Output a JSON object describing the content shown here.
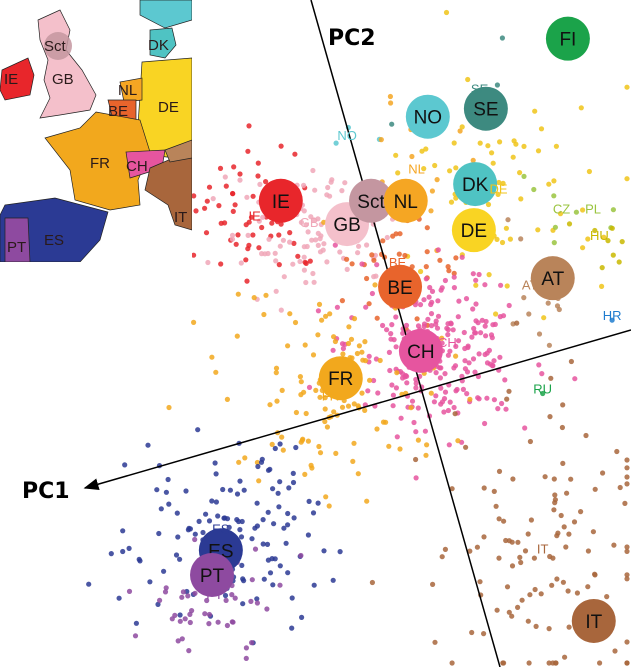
{
  "chart_data": {
    "type": "scatter",
    "title": "",
    "axes": [
      {
        "label": "PC1"
      },
      {
        "label": "PC2"
      }
    ],
    "xlim": [
      0,
      10
    ],
    "ylim": [
      0,
      10
    ],
    "grid": false,
    "legend": "map-inset top-left",
    "centroids": [
      {
        "label": "FI",
        "x": 9.0,
        "y": 0.58,
        "color": "#1ba34a"
      },
      {
        "label": "NO",
        "x": 6.78,
        "y": 1.75,
        "color": "#5cc8d0"
      },
      {
        "label": "SE",
        "x": 7.7,
        "y": 1.63,
        "color": "#3d8a80"
      },
      {
        "label": "DK",
        "x": 7.53,
        "y": 2.76,
        "color": "#4fc3c3"
      },
      {
        "label": "IE",
        "x": 4.45,
        "y": 3.01,
        "color": "#e8262b"
      },
      {
        "label": "GB",
        "x": 5.5,
        "y": 3.36,
        "color": "#f4c0cb"
      },
      {
        "label": "Sct",
        "x": 5.88,
        "y": 3.01,
        "color": "#c496a0"
      },
      {
        "label": "NL",
        "x": 6.43,
        "y": 3.01,
        "color": "#f5a623"
      },
      {
        "label": "DE",
        "x": 7.51,
        "y": 3.45,
        "color": "#f9d423"
      },
      {
        "label": "BE",
        "x": 6.34,
        "y": 4.3,
        "color": "#e8642c"
      },
      {
        "label": "AT",
        "x": 8.76,
        "y": 4.17,
        "color": "#b9845a"
      },
      {
        "label": "CH",
        "x": 6.67,
        "y": 5.26,
        "color": "#e6559f"
      },
      {
        "label": "FR",
        "x": 5.4,
        "y": 5.67,
        "color": "#f2a81d"
      },
      {
        "label": "ES",
        "x": 3.5,
        "y": 8.25,
        "color": "#2b3a94"
      },
      {
        "label": "PT",
        "x": 3.36,
        "y": 8.62,
        "color": "#8e4aa0"
      },
      {
        "label": "IT",
        "x": 9.41,
        "y": 9.31,
        "color": "#a8663c"
      }
    ],
    "samples": [
      {
        "label": "IE",
        "n": 60,
        "x": 4.1,
        "y": 3.2,
        "sx": 0.5,
        "sy": 0.5,
        "color": "#e8262b"
      },
      {
        "label": "GB",
        "n": 110,
        "x": 4.9,
        "y": 3.4,
        "sx": 0.7,
        "sy": 0.5,
        "color": "#f0a7b8"
      },
      {
        "label": "NO",
        "x": 5.5,
        "y": 2.1,
        "n": 3,
        "sx": 0.3,
        "sy": 0.2,
        "color": "#5cc8d0"
      },
      {
        "label": "SE",
        "x": 7.6,
        "y": 1.4,
        "n": 8,
        "sx": 0.4,
        "sy": 0.4,
        "color": "#3d8a80"
      },
      {
        "label": "NL",
        "x": 6.6,
        "y": 2.6,
        "n": 15,
        "sx": 0.4,
        "sy": 0.5,
        "color": "#f5a623"
      },
      {
        "label": "DE",
        "x": 7.9,
        "y": 2.9,
        "n": 70,
        "sx": 0.8,
        "sy": 0.8,
        "color": "#f0c419"
      },
      {
        "label": "BE",
        "x": 6.3,
        "y": 4.0,
        "n": 50,
        "sx": 0.5,
        "sy": 0.4,
        "color": "#e8642c"
      },
      {
        "label": "AT",
        "x": 8.6,
        "y": 4.2,
        "n": 12,
        "sx": 0.4,
        "sy": 0.5,
        "color": "#b9845a"
      },
      {
        "label": "CZ",
        "x": 8.9,
        "y": 3.2,
        "n": 5,
        "sx": 0.3,
        "sy": 0.3,
        "color": "#9ac43f"
      },
      {
        "label": "PL",
        "x": 9.4,
        "y": 3.2,
        "n": 3,
        "sx": 0.3,
        "sy": 0.2,
        "color": "#9ac43f"
      },
      {
        "label": "HU",
        "x": 9.5,
        "y": 3.6,
        "n": 8,
        "sx": 0.3,
        "sy": 0.4,
        "color": "#c9b800"
      },
      {
        "label": "CH",
        "x": 6.9,
        "y": 5.2,
        "n": 250,
        "sx": 0.7,
        "sy": 0.6,
        "color": "#e6559f"
      },
      {
        "label": "FR",
        "x": 5.3,
        "y": 5.9,
        "n": 120,
        "sx": 0.9,
        "sy": 0.9,
        "color": "#f2a81d"
      },
      {
        "label": "ES",
        "x": 3.5,
        "y": 8.0,
        "n": 130,
        "sx": 0.8,
        "sy": 0.7,
        "color": "#2b3a94"
      },
      {
        "label": "PT",
        "x": 3.4,
        "y": 8.8,
        "n": 60,
        "sx": 0.6,
        "sy": 0.5,
        "color": "#8e4aa0"
      },
      {
        "label": "IT",
        "x": 8.6,
        "y": 8.3,
        "n": 120,
        "sx": 0.9,
        "sy": 1.1,
        "color": "#a8663c"
      },
      {
        "label": "RU",
        "x": 8.6,
        "y": 5.9,
        "n": 1,
        "sx": 0,
        "sy": 0,
        "color": "#1ba34a"
      },
      {
        "label": "HR",
        "x": 9.7,
        "y": 4.8,
        "n": 1,
        "sx": 0,
        "sy": 0,
        "color": "#1f7ccf"
      }
    ]
  },
  "map_inset": {
    "labels": [
      "IE",
      "GB",
      "Sct",
      "NL",
      "BE",
      "DE",
      "DK",
      "FR",
      "CH",
      "ES",
      "PT",
      "IT"
    ]
  }
}
